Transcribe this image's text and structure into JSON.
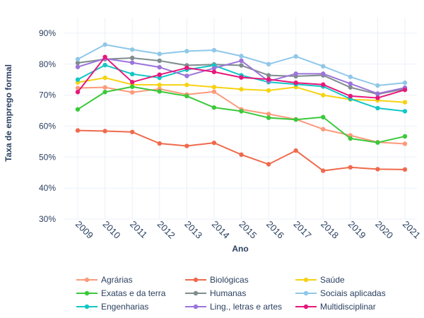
{
  "chart_data": {
    "type": "line",
    "xlabel": "Ano",
    "ylabel": "Taxa de emprego formal",
    "ylim": [
      30,
      95
    ],
    "y_ticks": [
      "30%",
      "40%",
      "50%",
      "60%",
      "70%",
      "80%",
      "90%"
    ],
    "y_tick_values": [
      30,
      40,
      50,
      60,
      70,
      80,
      90
    ],
    "grid": true,
    "legend_position": "bottom",
    "x": [
      "2009",
      "2010",
      "2011",
      "2012",
      "2013",
      "2014",
      "2015",
      "2016",
      "2017",
      "2018",
      "2019",
      "2020",
      "2021"
    ],
    "series": [
      {
        "name": "Agrárias",
        "color": "#fc9a7b",
        "values": [
          72.3,
          72.5,
          70.9,
          72.0,
          70.2,
          71.1,
          65.4,
          63.9,
          62.2,
          59.0,
          57.0,
          54.8,
          54.3
        ]
      },
      {
        "name": "Biológicas",
        "color": "#ef6a4c",
        "values": [
          58.6,
          58.4,
          58.1,
          54.4,
          53.6,
          54.6,
          50.8,
          47.7,
          52.1,
          45.6,
          46.7,
          46.1,
          46.0
        ]
      },
      {
        "name": "Saúde",
        "color": "#f7d211",
        "values": [
          74.1,
          75.6,
          73.4,
          73.3,
          73.3,
          72.6,
          71.9,
          71.5,
          72.6,
          70.0,
          68.6,
          68.3,
          67.7
        ]
      },
      {
        "name": "Exatas e da terra",
        "color": "#3ac93a",
        "values": [
          65.4,
          71.0,
          72.7,
          71.2,
          69.7,
          66.0,
          64.8,
          62.7,
          62.1,
          62.9,
          56.0,
          54.7,
          56.7
        ]
      },
      {
        "name": "Humanas",
        "color": "#7f8c8d",
        "values": [
          80.4,
          81.6,
          82.0,
          81.1,
          79.6,
          79.9,
          79.6,
          76.4,
          76.1,
          76.4,
          72.5,
          70.3,
          72.0
        ]
      },
      {
        "name": "Sociais aplicadas",
        "color": "#8fc7e8",
        "values": [
          81.6,
          86.3,
          84.7,
          83.3,
          84.2,
          84.5,
          82.6,
          80.0,
          82.5,
          79.3,
          75.9,
          73.1,
          74.0
        ]
      },
      {
        "name": "Engenharias",
        "color": "#13c6c6",
        "values": [
          75.0,
          79.7,
          76.8,
          75.6,
          78.2,
          79.6,
          76.4,
          74.2,
          73.5,
          72.8,
          68.8,
          65.8,
          64.8
        ]
      },
      {
        "name": "Ling., letras e artes",
        "color": "#9b74d9",
        "values": [
          79.1,
          81.8,
          80.5,
          79.0,
          76.2,
          78.7,
          81.1,
          74.5,
          76.9,
          76.9,
          73.7,
          70.5,
          72.4
        ]
      },
      {
        "name": "Multidisciplinar",
        "color": "#e6177b",
        "values": [
          71.0,
          82.3,
          74.2,
          76.6,
          78.8,
          77.5,
          75.7,
          75.1,
          74.0,
          73.4,
          69.7,
          69.1,
          71.7
        ]
      }
    ]
  }
}
